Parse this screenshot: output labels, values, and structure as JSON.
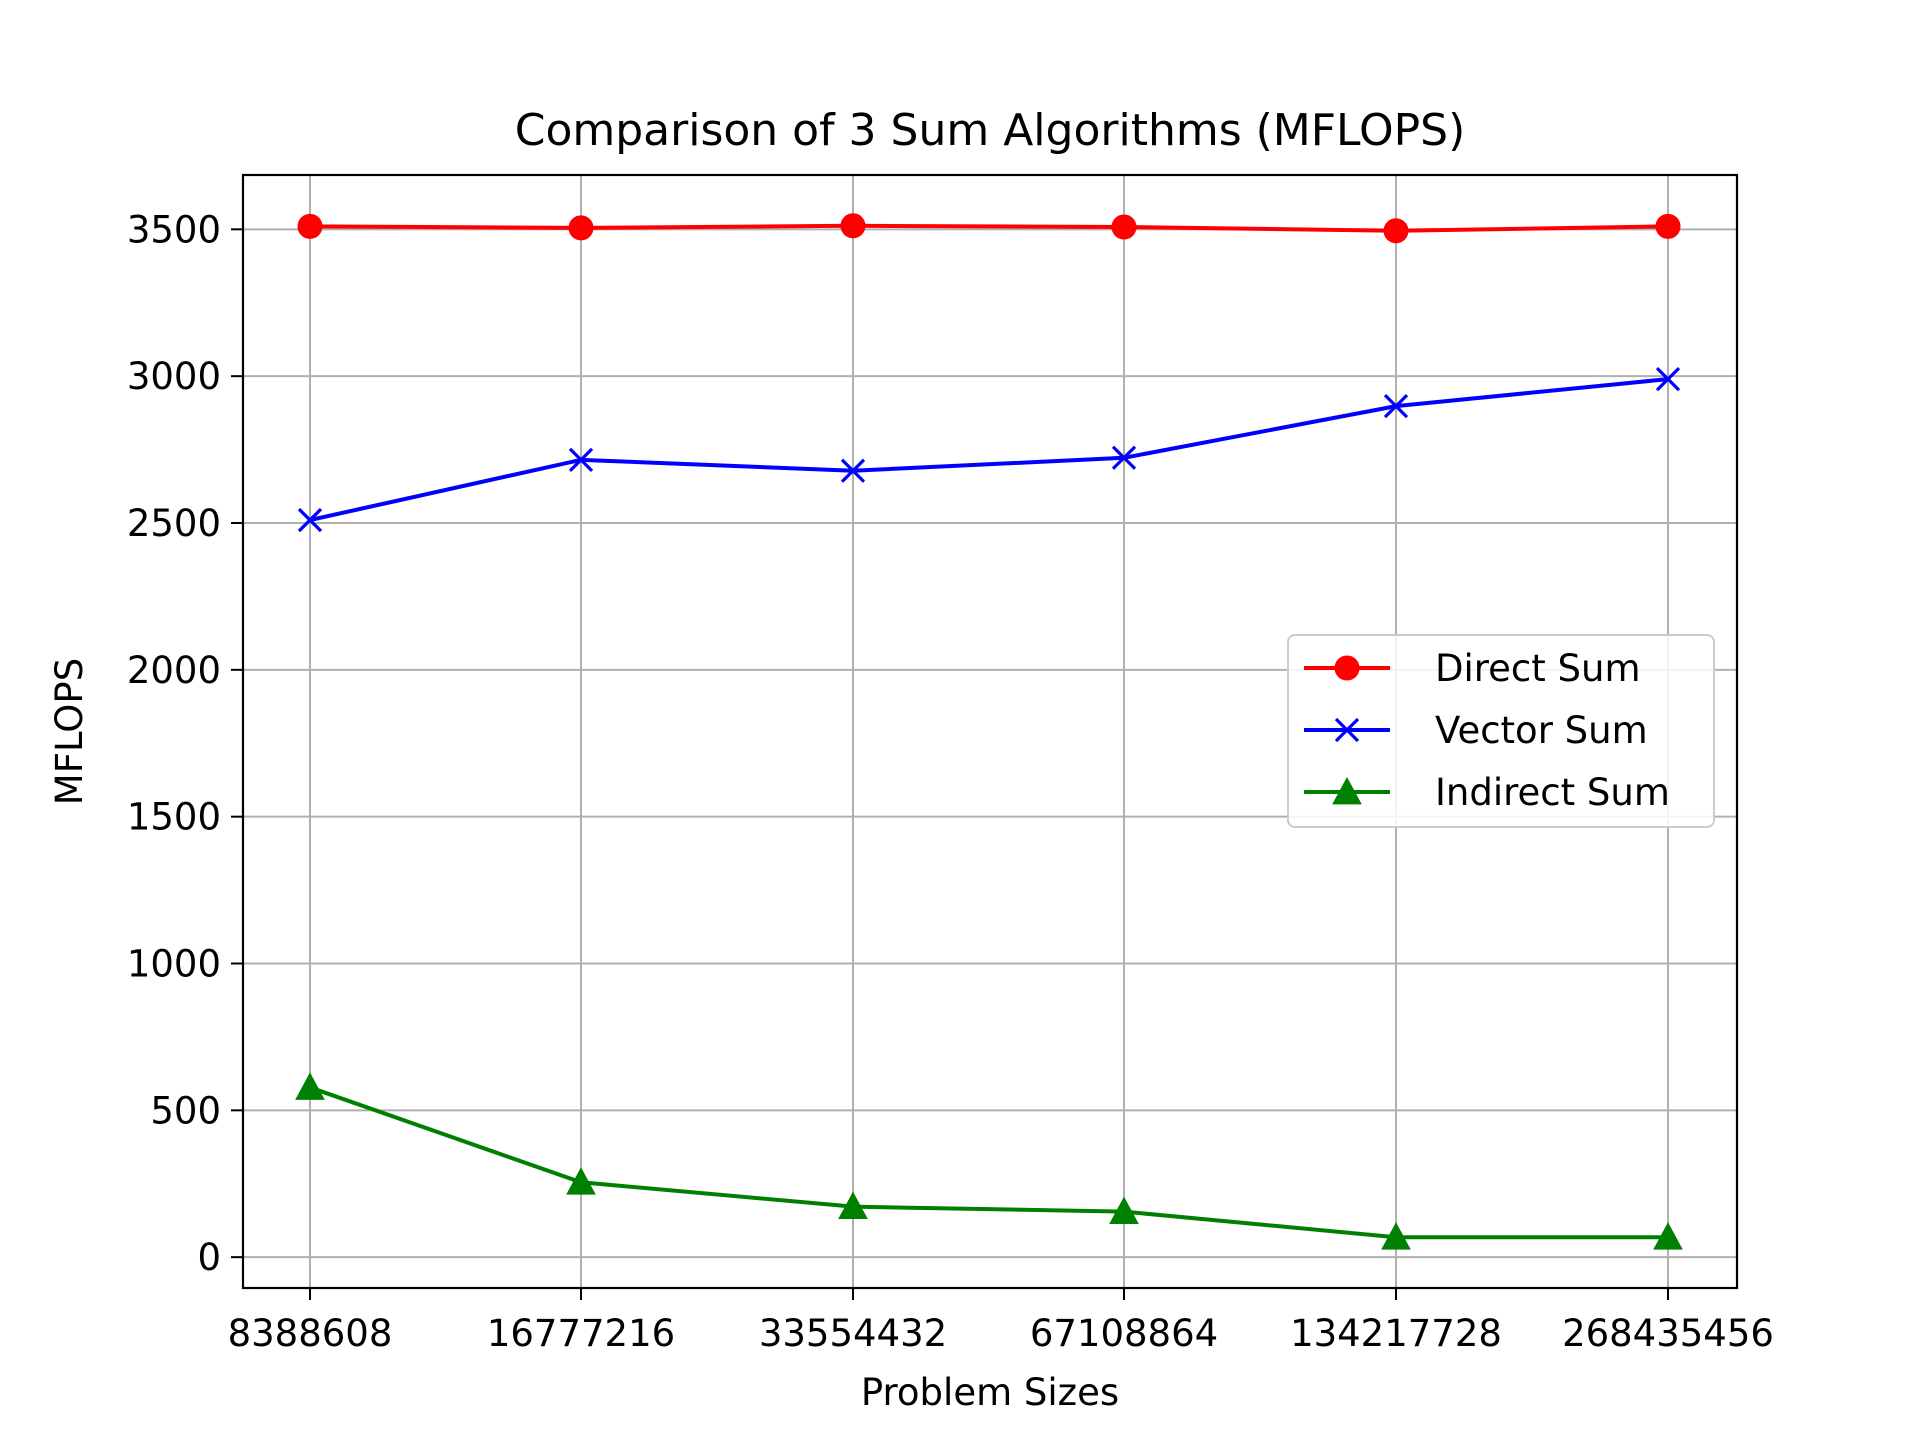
{
  "chart_data": {
    "type": "line",
    "title": "Comparison of 3 Sum Algorithms (MFLOPS)",
    "xlabel": "Problem Sizes",
    "ylabel": "MFLOPS",
    "categories": [
      "8388608",
      "16777216",
      "33554432",
      "67108864",
      "134217728",
      "268435456"
    ],
    "ylim": [
      -105,
      3685
    ],
    "yticks": [
      0,
      500,
      1000,
      1500,
      2000,
      2500,
      3000,
      3500
    ],
    "grid": true,
    "legend_position": "center-right",
    "series": [
      {
        "name": "Direct Sum",
        "color": "#ff0000",
        "marker": "circle",
        "values": [
          3510,
          3505,
          3512,
          3508,
          3495,
          3510
        ]
      },
      {
        "name": "Vector Sum",
        "color": "#0000ff",
        "marker": "x",
        "values": [
          2510,
          2715,
          2678,
          2722,
          2898,
          2990
        ]
      },
      {
        "name": "Indirect Sum",
        "color": "#008000",
        "marker": "triangle",
        "values": [
          578,
          255,
          172,
          155,
          68,
          68
        ]
      }
    ]
  }
}
